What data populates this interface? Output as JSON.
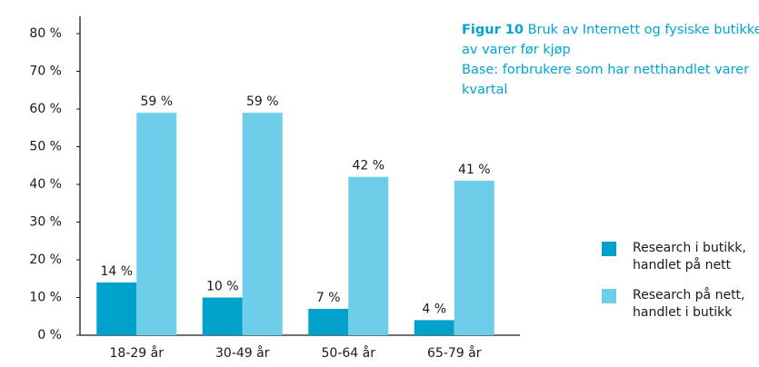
{
  "chart_data": {
    "type": "bar",
    "figure_label": "Figur 10",
    "title_lines": [
      "Bruk av Internett og fysiske butikke",
      "av varer før kjøp"
    ],
    "subtitle_lines": [
      "Base: forbrukere som har netthandlet varer",
      "kvartal"
    ],
    "categories": [
      "18-29 år",
      "30-49 år",
      "50-64 år",
      "65-79 år"
    ],
    "series": [
      {
        "name": "Research i butikk, handlet på nett",
        "color": "#00a2cc",
        "values": [
          14,
          10,
          7,
          4
        ],
        "value_labels": [
          "14 %",
          "10 %",
          "7 %",
          "4 %"
        ]
      },
      {
        "name": "Research på nett, handlet i butikk",
        "color": "#6ecde8",
        "values": [
          59,
          59,
          42,
          41
        ],
        "value_labels": [
          "59 %",
          "59 %",
          "42 %",
          "41 %"
        ]
      }
    ],
    "ylim": [
      0,
      80
    ],
    "yticks": [
      {
        "value": 0,
        "label": "0 %"
      },
      {
        "value": 10,
        "label": "10 %"
      },
      {
        "value": 20,
        "label": "20 %"
      },
      {
        "value": 30,
        "label": "30 %"
      },
      {
        "value": 40,
        "label": "40 %"
      },
      {
        "value": 50,
        "label": "50 %"
      },
      {
        "value": 60,
        "label": "60 %"
      },
      {
        "value": 70,
        "label": "70 %"
      },
      {
        "value": 80,
        "label": "80 %"
      }
    ],
    "grid": false,
    "legend": "right"
  }
}
